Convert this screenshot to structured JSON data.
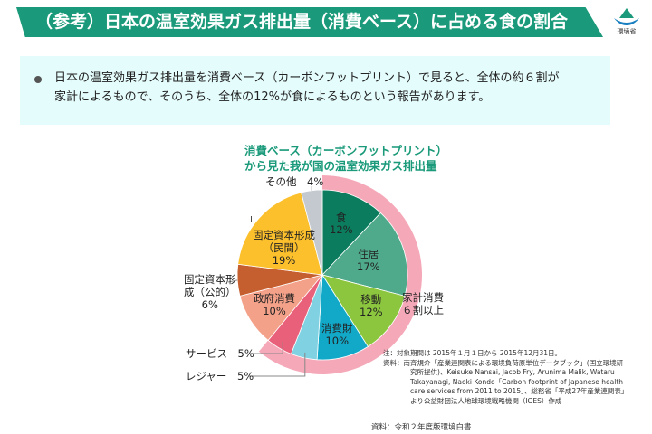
{
  "header": {
    "title": "（参考）日本の温室効果ガス排出量（消費ベース）に占める食の割合",
    "logo_text": "環境省"
  },
  "summary": {
    "text_line1": "日本の温室効果ガス排出量を消費ベース（カーボンフットプリント）で見ると、全体の約６割が",
    "text_line2": "家計によるもので、そのうち、全体の12%が食によるものという報告があります。"
  },
  "chart_data": {
    "type": "pie",
    "title_line1": "消費ベース（カーボンフットプリント）",
    "title_line2": "から見た我が国の温室効果ガス排出量",
    "slices": [
      {
        "label": "食",
        "value": 12,
        "text": "12%",
        "color": "#0b7c5d"
      },
      {
        "label": "住居",
        "value": 17,
        "text": "17%",
        "color": "#4faa8b"
      },
      {
        "label": "移動",
        "value": 12,
        "text": "12%",
        "color": "#8cc63e"
      },
      {
        "label": "消費財",
        "value": 10,
        "text": "10%",
        "color": "#12a9c9"
      },
      {
        "label": "レジャー",
        "value": 5,
        "text": "5%",
        "color": "#80d2e2"
      },
      {
        "label": "サービス",
        "value": 5,
        "text": "5%",
        "color": "#e9607a"
      },
      {
        "label": "政府消費",
        "value": 10,
        "text": "10%",
        "color": "#f4a189"
      },
      {
        "label": "固定資本形成（公的）",
        "value": 6,
        "text": "6%",
        "color": "#c65f2f"
      },
      {
        "label": "固定資本形成（民間）",
        "value": 19,
        "text": "19%",
        "color": "#fcc02c"
      },
      {
        "label": "その他",
        "value": 4,
        "text": "4%",
        "color": "#c3c9cf"
      }
    ],
    "household_group": {
      "label_line1": "家計消費",
      "label_line2": "６割以上",
      "slices_count": 6,
      "color": "#f5a8b8"
    },
    "labels": {
      "food": "食",
      "housing": "住居",
      "transport": "移動",
      "goods": "消費財",
      "gov": "政府消費",
      "priv_a": "固定資本形成",
      "priv_b": "（民間）",
      "pub_a": "固定資本形",
      "pub_b": "成（公的）",
      "other": "その他",
      "service": "サービス",
      "leisure": "レジャー"
    }
  },
  "notes": {
    "line1": "注：対象期間は 2015年１月１日から 2015年12月31日。",
    "line2": "資料：南斉規介「産業連関表による環境負荷原単位データブック」(国立環境研",
    "line3": "究所提供)、Keisuke Nansai, Jacob Fry, Arunima Malik, Wataru",
    "line4": "Takayanagi, Naoki Kondo「Carbon footprint of Japanese health",
    "line5": "care services from 2011 to 2015」、総務省「平成27年産業連関表」",
    "line6": "より公益財団法人地球環境戦略機関（IGES）作成"
  },
  "source": "資料：令和２年度版環境白書"
}
